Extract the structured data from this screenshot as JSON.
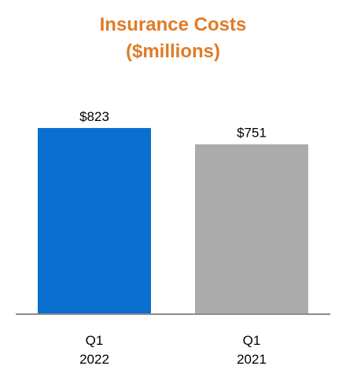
{
  "chart_data": {
    "type": "bar",
    "title": "Insurance Costs",
    "subtitle": "($millions)",
    "categories": [
      [
        "Q1",
        "2022"
      ],
      [
        "Q1",
        "2021"
      ]
    ],
    "values": [
      823,
      751
    ],
    "value_labels": [
      "$823",
      "$751"
    ],
    "bar_colors": [
      "#0A6FD1",
      "#ABABAB"
    ],
    "title_color": "#E07B28",
    "axis_color": "#8C8C8C",
    "ylim": [
      0,
      1000
    ],
    "grid": false,
    "legend": "none"
  }
}
